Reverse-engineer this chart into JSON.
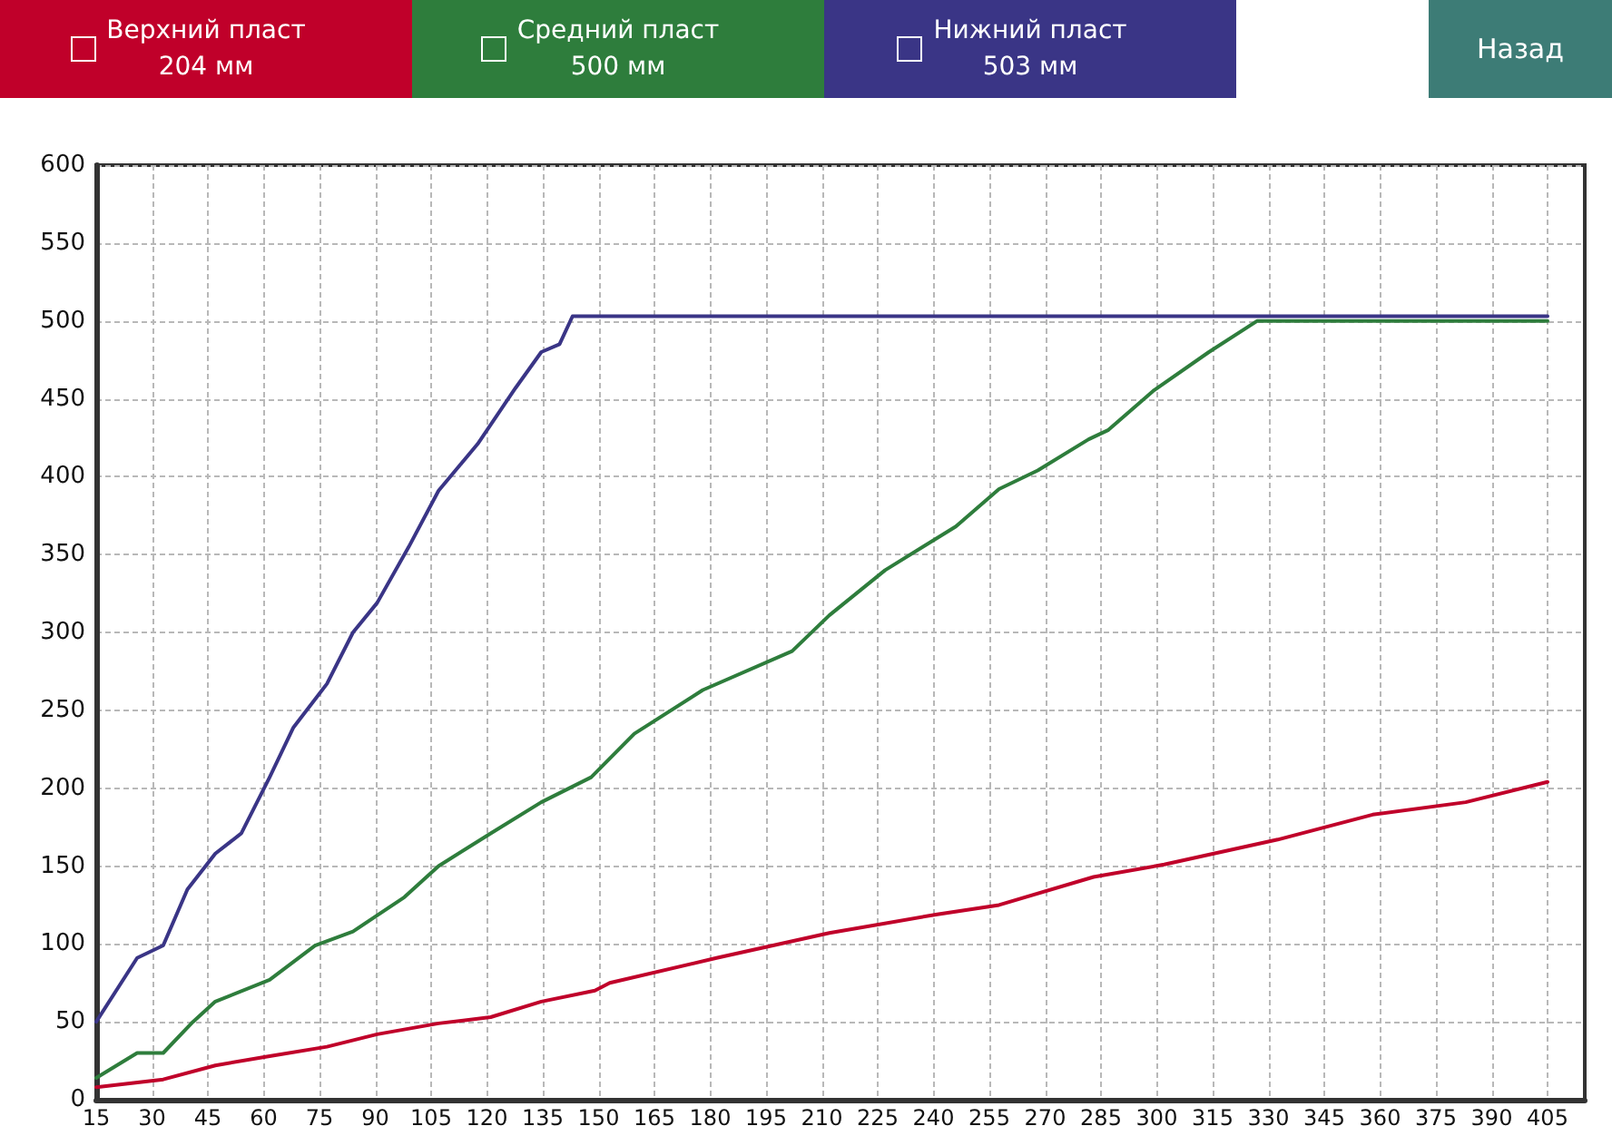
{
  "chart_data": {
    "type": "line",
    "legend": "top",
    "grid": true,
    "line_style": "solid",
    "marker": "none",
    "annotations": [
      "Назад"
    ],
    "xlim": [
      15,
      415
    ],
    "xticks": [
      15,
      30,
      45,
      60,
      75,
      90,
      105,
      120,
      135,
      150,
      165,
      180,
      195,
      210,
      225,
      240,
      255,
      270,
      285,
      300,
      315,
      330,
      345,
      360,
      375,
      390,
      405
    ],
    "ylim": [
      0,
      600
    ],
    "yticks": [
      0,
      50,
      100,
      150,
      200,
      250,
      300,
      350,
      400,
      450,
      500,
      550,
      600
    ],
    "series": [
      {
        "name": "Верхний пласт\n204 мм",
        "color": "#c0002a",
        "x": [
          15,
          33,
          47,
          61.6,
          77,
          90.5,
          107,
          121,
          134.6,
          149,
          153,
          181.7,
          212,
          241,
          257.6,
          283,
          302,
          332.5,
          358,
          383,
          405
        ],
        "values": [
          8,
          13,
          22,
          28,
          34,
          42,
          49,
          53,
          63,
          70,
          75,
          91,
          107,
          119,
          125,
          143,
          151,
          167,
          183,
          191,
          204
        ]
      },
      {
        "name": "Средний пласт\n500 мм",
        "color": "#2e7d3c",
        "x": [
          15,
          26,
          33,
          41,
          47,
          61.6,
          73.8,
          84,
          97.8,
          107,
          121,
          134.6,
          148,
          159.6,
          178,
          202,
          212,
          227,
          246,
          257.6,
          268,
          281.7,
          287,
          299,
          314,
          327,
          405
        ],
        "values": [
          14,
          30,
          30,
          50,
          63,
          77,
          99,
          108,
          130,
          150,
          171,
          191,
          207,
          235,
          263,
          288,
          311,
          340,
          368,
          392,
          404,
          424,
          430,
          455,
          480,
          500,
          500
        ]
      },
      {
        "name": "Нижний пласт\n503 мм",
        "color": "#3a3586",
        "x": [
          15,
          26,
          33,
          39.5,
          47,
          54,
          61.6,
          68,
          77,
          84,
          90.5,
          99,
          107,
          117.5,
          127.7,
          134.6,
          139.5,
          143,
          405
        ],
        "values": [
          50,
          91,
          99,
          135,
          158,
          171,
          207,
          239,
          267,
          300,
          319,
          355,
          391,
          421,
          457,
          480,
          485,
          503,
          503
        ]
      }
    ]
  }
}
